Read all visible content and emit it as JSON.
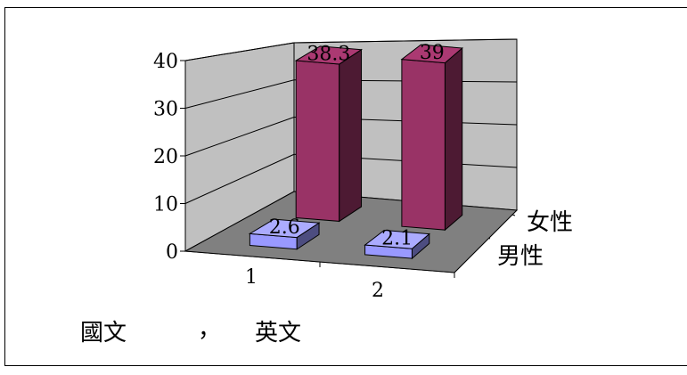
{
  "chart_data": {
    "type": "bar",
    "subtype": "3d-column",
    "categories": [
      "1",
      "2"
    ],
    "series": [
      {
        "name": "女性",
        "values": [
          38.3,
          39
        ],
        "color": "#993366"
      },
      {
        "name": "男性",
        "values": [
          2.6,
          2.1
        ],
        "color": "#9999ff"
      }
    ],
    "data_labels": [
      "38.3",
      "39",
      "2.6",
      "2.1"
    ],
    "ylim": [
      0,
      40
    ],
    "yticks": [
      "0",
      "10",
      "20",
      "30",
      "40"
    ],
    "grid": true,
    "wall_color": "#c0c0c0",
    "floor_color": "#808080",
    "caption_left": "國文",
    "caption_sep": "，",
    "caption_right": "英文"
  }
}
